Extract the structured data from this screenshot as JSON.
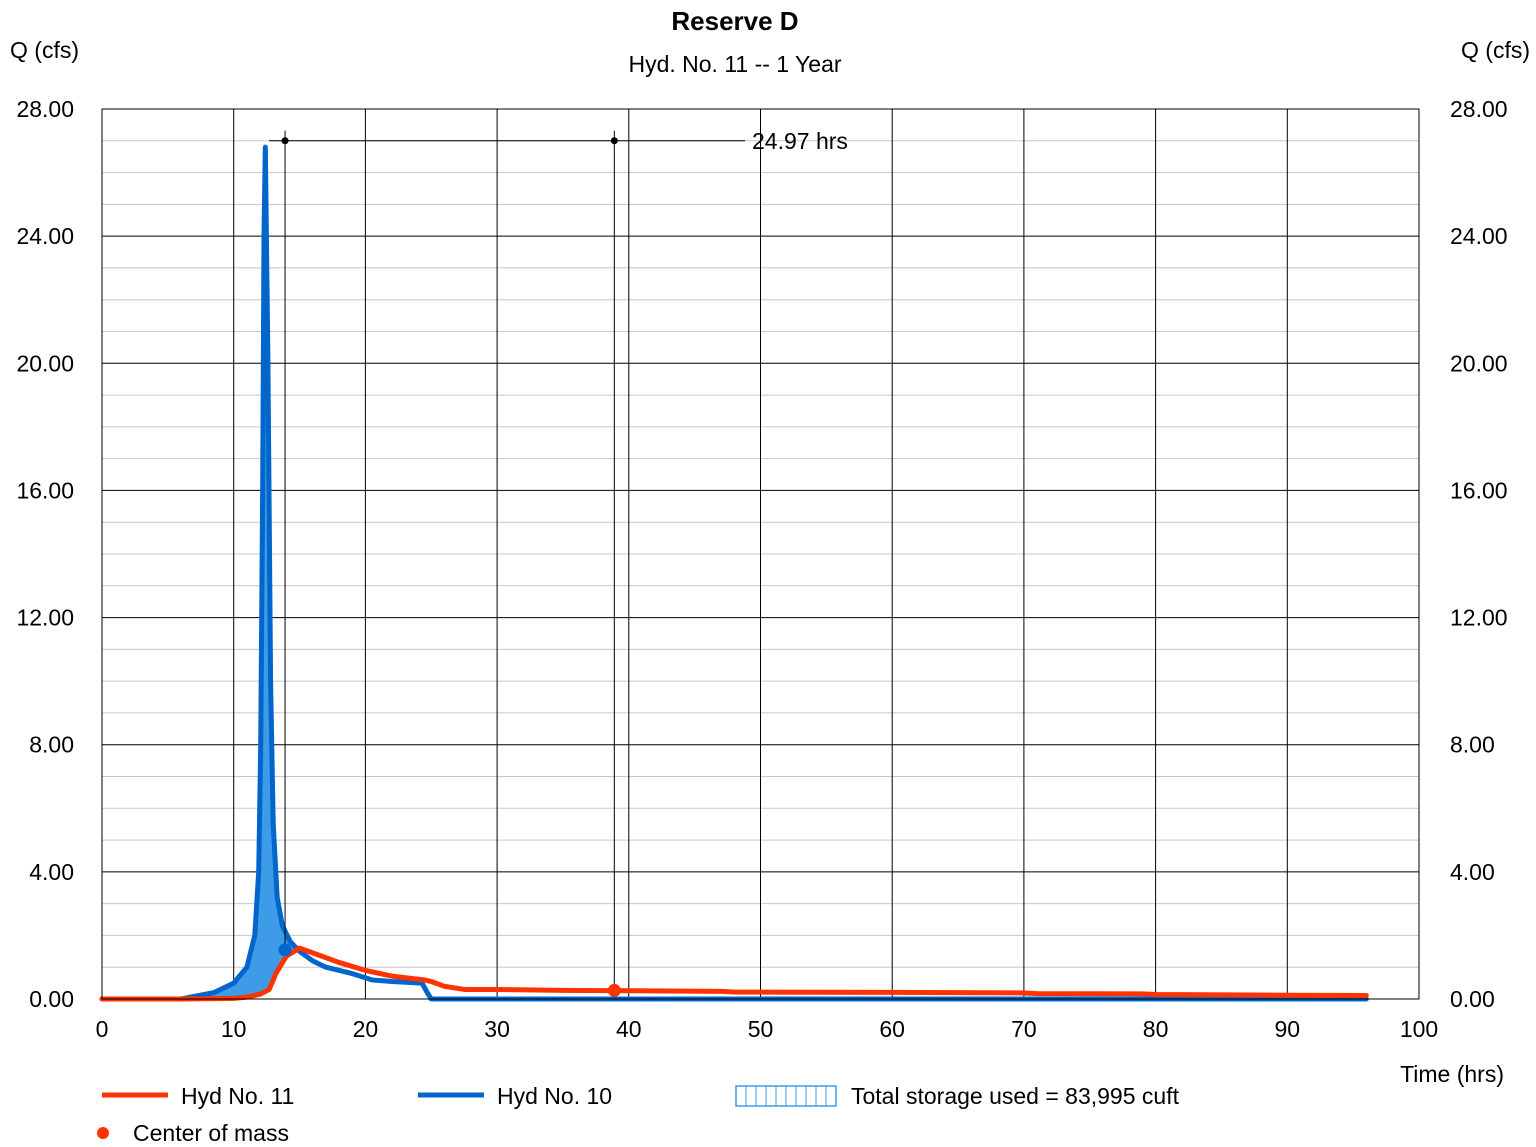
{
  "chart_data": {
    "type": "line",
    "title": "Reserve D",
    "subtitle": "Hyd. No. 11 -- 1 Year",
    "xlabel": "Time (hrs)",
    "ylabel_left": "Q (cfs)",
    "ylabel_right": "Q (cfs)",
    "xlim": [
      0,
      100
    ],
    "ylim": [
      0,
      28
    ],
    "x_ticks": [
      "0",
      "10",
      "20",
      "30",
      "40",
      "50",
      "60",
      "70",
      "80",
      "90",
      "100"
    ],
    "y_ticks": [
      "0.00",
      "4.00",
      "8.00",
      "12.00",
      "16.00",
      "20.00",
      "24.00",
      "28.00"
    ],
    "grid": true,
    "legend_position": "bottom",
    "series": [
      {
        "name": "Hyd No. 11",
        "color": "#ff3300",
        "points": [
          [
            0,
            0
          ],
          [
            6,
            0
          ],
          [
            10,
            0.02
          ],
          [
            11,
            0.06
          ],
          [
            12,
            0.15
          ],
          [
            12.7,
            0.3
          ],
          [
            13.2,
            0.8
          ],
          [
            14,
            1.35
          ],
          [
            15,
            1.6
          ],
          [
            16,
            1.45
          ],
          [
            18,
            1.15
          ],
          [
            20,
            0.9
          ],
          [
            22,
            0.72
          ],
          [
            24.5,
            0.6
          ],
          [
            25,
            0.55
          ],
          [
            26,
            0.4
          ],
          [
            27.5,
            0.3
          ],
          [
            30,
            0.3
          ],
          [
            35,
            0.27
          ],
          [
            40,
            0.26
          ],
          [
            47,
            0.24
          ],
          [
            48,
            0.22
          ],
          [
            60,
            0.21
          ],
          [
            70,
            0.19
          ],
          [
            71,
            0.17
          ],
          [
            79,
            0.16
          ],
          [
            80,
            0.14
          ],
          [
            90,
            0.12
          ],
          [
            96,
            0.11
          ]
        ]
      },
      {
        "name": "Hyd No. 10",
        "color": "#0066cc",
        "points": [
          [
            0,
            0
          ],
          [
            6,
            0
          ],
          [
            8.5,
            0.2
          ],
          [
            10,
            0.5
          ],
          [
            11,
            1.0
          ],
          [
            11.6,
            2.0
          ],
          [
            11.9,
            4.0
          ],
          [
            12.05,
            8.0
          ],
          [
            12.2,
            16.0
          ],
          [
            12.3,
            24.0
          ],
          [
            12.4,
            26.8
          ],
          [
            12.6,
            20.0
          ],
          [
            12.8,
            10.0
          ],
          [
            13.0,
            5.5
          ],
          [
            13.3,
            3.2
          ],
          [
            13.7,
            2.3
          ],
          [
            14.3,
            1.8
          ],
          [
            15,
            1.5
          ],
          [
            16,
            1.2
          ],
          [
            17,
            1.0
          ],
          [
            19,
            0.8
          ],
          [
            20.5,
            0.6
          ],
          [
            22,
            0.55
          ],
          [
            24.3,
            0.5
          ],
          [
            24.7,
            0.2
          ],
          [
            25,
            0
          ],
          [
            96,
            0
          ]
        ]
      }
    ],
    "storage": {
      "label": "Total storage used = 83,995 cuft",
      "color": "#3d9be8"
    },
    "center_of_mass": {
      "label": "Center of mass",
      "inflow": {
        "x": 13.9,
        "y": 1.55
      },
      "outflow": {
        "x": 38.9,
        "y": 0.27
      }
    },
    "annotation": {
      "label": "24.97 hrs",
      "y": 27.0,
      "x_start": 13.9,
      "x_end": 38.9
    }
  }
}
